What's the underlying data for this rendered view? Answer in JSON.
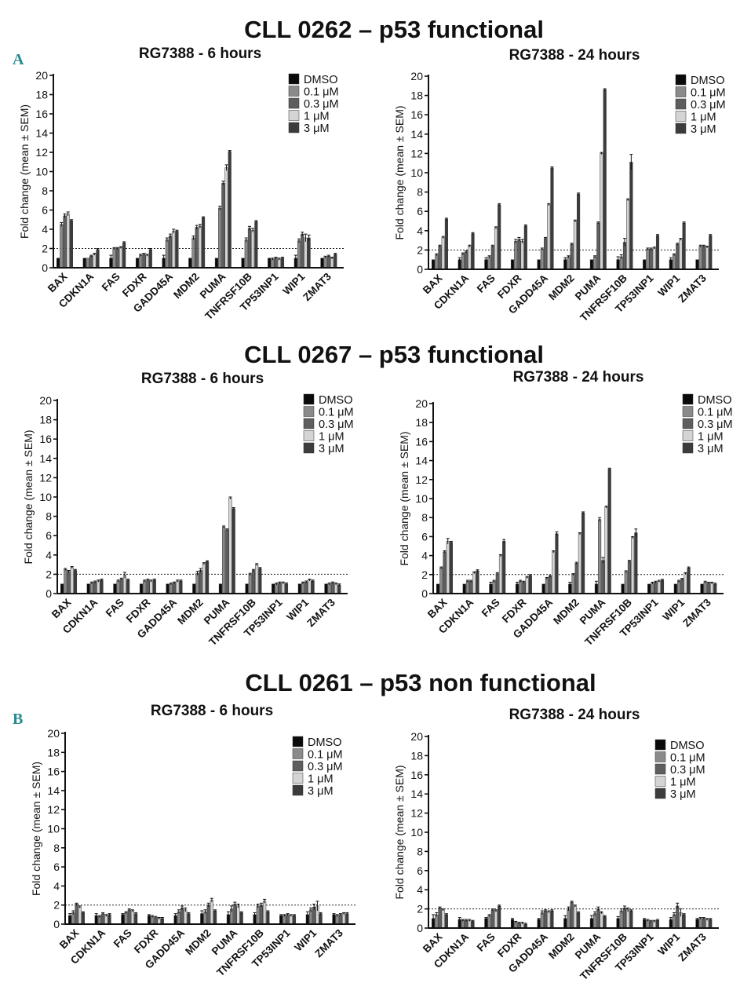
{
  "figure": {
    "panel_letters": [
      "A",
      "B"
    ],
    "section_titles": [
      "CLL 0262 – p53 functional",
      "CLL 0267 – p53 functional",
      "CLL 0261 – p53 non functional"
    ]
  },
  "colors": {
    "DMSO": "#0a0a0a",
    "0.1 μM": "#8a8a8a",
    "0.3 μM": "#5e5e5e",
    "1 μM": "#d4d4d4",
    "3 μM": "#3c3c3c",
    "accent_letter": "#2a8a8e"
  },
  "chart_data": [
    {
      "id": "cll0262-6h",
      "type": "bar",
      "title": "RG7388 - 6 hours",
      "ylabel": "Fold change (mean ± SEM)",
      "xlabel": "",
      "ylim": [
        0,
        20
      ],
      "yticks": [
        0,
        2,
        4,
        6,
        8,
        10,
        12,
        14,
        16,
        18,
        20
      ],
      "reference_line": 2,
      "legend_position": "top-right",
      "categories": [
        "BAX",
        "CDKN1A",
        "FAS",
        "FDXR",
        "GADD45A",
        "MDM2",
        "PUMA",
        "TNFRSF10B",
        "TP53INP1",
        "WIP1",
        "ZMAT3"
      ],
      "series": [
        {
          "name": "DMSO",
          "values": [
            1,
            1,
            1,
            1,
            1,
            1,
            1,
            1,
            1,
            1,
            1
          ],
          "errors": [
            0,
            0,
            0.3,
            0,
            0.3,
            0,
            0,
            0,
            0,
            0.3,
            0
          ]
        },
        {
          "name": "0.1 μM",
          "values": [
            4.5,
            1,
            2,
            1.3,
            2.9,
            3.1,
            6.2,
            2.9,
            0.9,
            2.8,
            1.1
          ],
          "errors": [
            0.2,
            0,
            0.1,
            0.1,
            0.2,
            0.2,
            0.2,
            0.2,
            0.1,
            0.2,
            0.1
          ]
        },
        {
          "name": "0.3 μM",
          "values": [
            5.4,
            1.2,
            2,
            1.4,
            3.3,
            4.2,
            8.8,
            4.1,
            1,
            3.5,
            1.2
          ],
          "errors": [
            0.2,
            0.1,
            0.1,
            0.1,
            0.2,
            0.2,
            0.2,
            0.2,
            0.1,
            0.2,
            0.1
          ]
        },
        {
          "name": "1 μM",
          "values": [
            5.6,
            1.4,
            2.1,
            1.3,
            3.8,
            4.3,
            10.4,
            3.9,
            0.9,
            3.1,
            1
          ],
          "errors": [
            0.2,
            0.1,
            0.1,
            0.1,
            0.2,
            0.2,
            0.3,
            0.2,
            0.1,
            0.4,
            0.1
          ]
        },
        {
          "name": "3 μM",
          "values": [
            4.9,
            1.9,
            2.6,
            1.9,
            3.8,
            5.2,
            12.1,
            4.8,
            1,
            3.1,
            1.4
          ],
          "errors": [
            0.1,
            0.1,
            0.1,
            0.1,
            0.1,
            0.1,
            0.1,
            0.1,
            0.1,
            0.3,
            0.1
          ]
        }
      ]
    },
    {
      "id": "cll0262-24h",
      "type": "bar",
      "title": "RG7388 - 24 hours",
      "ylabel": "Fold change (mean ± SEM)",
      "xlabel": "",
      "ylim": [
        0,
        20
      ],
      "yticks": [
        0,
        2,
        4,
        6,
        8,
        10,
        12,
        14,
        16,
        18,
        20
      ],
      "reference_line": 2,
      "legend_position": "top-right",
      "categories": [
        "BAX",
        "CDKN1A",
        "FAS",
        "FDXR",
        "GADD45A",
        "MDM2",
        "PUMA",
        "TNFRSF10B",
        "TP53INP1",
        "WIP1",
        "ZMAT3"
      ],
      "series": [
        {
          "name": "DMSO",
          "values": [
            1,
            1,
            1,
            1,
            1,
            1,
            1,
            1,
            1,
            1,
            1
          ],
          "errors": [
            0,
            0.2,
            0.2,
            0,
            0,
            0.2,
            0,
            0.3,
            0,
            0.2,
            0
          ]
        },
        {
          "name": "0.1 μM",
          "values": [
            1.5,
            1.6,
            1.3,
            2.9,
            2.1,
            1.3,
            1.3,
            1.3,
            2.1,
            1.5,
            2.4
          ],
          "errors": [
            0.1,
            0.1,
            0.1,
            0.2,
            0.1,
            0.1,
            0.1,
            0.2,
            0.1,
            0.1,
            0.1
          ]
        },
        {
          "name": "0.3 μM",
          "values": [
            2.4,
            1.8,
            2.4,
            3.1,
            3.2,
            2.6,
            4.8,
            2.8,
            2.1,
            2.6,
            2.4
          ],
          "errors": [
            0.1,
            0.1,
            0.1,
            0.2,
            0.1,
            0.1,
            0.1,
            0.4,
            0.1,
            0.1,
            0.1
          ]
        },
        {
          "name": "1 μM",
          "values": [
            3.3,
            2.4,
            4.3,
            2.9,
            6.7,
            5,
            12,
            7.2,
            2.2,
            3.1,
            2.3
          ],
          "errors": [
            0.1,
            0.1,
            0.1,
            0.2,
            0.1,
            0.1,
            0.1,
            0.1,
            0.1,
            0.1,
            0.1
          ]
        },
        {
          "name": "3 μM",
          "values": [
            5.2,
            3.7,
            6.7,
            4.5,
            10.5,
            7.8,
            18.6,
            11.1,
            3.5,
            4.8,
            3.5
          ],
          "errors": [
            0.1,
            0.1,
            0.1,
            0.1,
            0.1,
            0.1,
            0.1,
            0.8,
            0.1,
            0.1,
            0.1
          ]
        }
      ]
    },
    {
      "id": "cll0267-6h",
      "type": "bar",
      "title": "RG7388 - 6 hours",
      "ylabel": "Fold change (mean ± SEM)",
      "xlabel": "",
      "ylim": [
        0,
        20
      ],
      "yticks": [
        0,
        2,
        4,
        6,
        8,
        10,
        12,
        14,
        16,
        18,
        20
      ],
      "reference_line": 2,
      "legend_position": "top-right",
      "categories": [
        "BAX",
        "CDKN1A",
        "FAS",
        "FDXR",
        "GADD45A",
        "MDM2",
        "PUMA",
        "TNFRSF10B",
        "TP53INP1",
        "WIP1",
        "ZMAT3"
      ],
      "series": [
        {
          "name": "DMSO",
          "values": [
            1,
            1,
            1,
            1,
            1,
            1,
            1,
            1,
            1,
            1,
            1
          ],
          "errors": [
            0,
            0,
            0,
            0,
            0,
            0,
            0,
            0,
            0,
            0,
            0
          ]
        },
        {
          "name": "0.1 μM",
          "values": [
            2.5,
            1.1,
            1.3,
            1.3,
            1,
            2.1,
            6.9,
            2,
            1,
            1.1,
            1
          ],
          "errors": [
            0.1,
            0.1,
            0.1,
            0.1,
            0.1,
            0.2,
            0.1,
            0.1,
            0.1,
            0.1,
            0.1
          ]
        },
        {
          "name": "0.3 μM",
          "values": [
            2.3,
            1.2,
            1.5,
            1.4,
            1.1,
            2.4,
            6.6,
            2.4,
            1.1,
            1.2,
            1.1
          ],
          "errors": [
            0.1,
            0.1,
            0.1,
            0.1,
            0.1,
            0.2,
            0.1,
            0.1,
            0.1,
            0.1,
            0.1
          ]
        },
        {
          "name": "1 μM",
          "values": [
            2.7,
            1.3,
            1.9,
            1.3,
            1.3,
            3.1,
            9.9,
            3,
            1.1,
            1.4,
            1
          ],
          "errors": [
            0.1,
            0.1,
            0.3,
            0.1,
            0.1,
            0.1,
            0.1,
            0.1,
            0.1,
            0.1,
            0.1
          ]
        },
        {
          "name": "3 μM",
          "values": [
            2.4,
            1.4,
            1.4,
            1.4,
            1.3,
            3.3,
            8.8,
            2.6,
            1,
            1.3,
            0.9
          ],
          "errors": [
            0.1,
            0.1,
            0.1,
            0.1,
            0.1,
            0.1,
            0.1,
            0.1,
            0.1,
            0.1,
            0.1
          ]
        }
      ]
    },
    {
      "id": "cll0267-24h",
      "type": "bar",
      "title": "RG7388 - 24 hours",
      "ylabel": "Fold change (mean ± SEM)",
      "xlabel": "",
      "ylim": [
        0,
        20
      ],
      "yticks": [
        0,
        2,
        4,
        6,
        8,
        10,
        12,
        14,
        16,
        18,
        20
      ],
      "reference_line": 2,
      "legend_position": "top-right",
      "categories": [
        "BAX",
        "CDKN1A",
        "FAS",
        "FDXR",
        "GADD45A",
        "MDM2",
        "PUMA",
        "TNFRSF10B",
        "TP53INP1",
        "WIP1",
        "ZMAT3"
      ],
      "series": [
        {
          "name": "DMSO",
          "values": [
            1,
            1,
            1,
            1,
            1,
            1,
            1,
            1,
            1,
            1,
            1
          ],
          "errors": [
            0,
            0,
            0.2,
            0.2,
            0,
            0.2,
            0.3,
            0,
            0,
            0,
            0
          ]
        },
        {
          "name": "0.1 μM",
          "values": [
            2.7,
            1.3,
            1.3,
            1.3,
            1.6,
            2,
            7.8,
            2.3,
            1.1,
            1.3,
            1.2
          ],
          "errors": [
            0.1,
            0.1,
            0.1,
            0.1,
            0.1,
            0.1,
            0.2,
            0.1,
            0.1,
            0.1,
            0.1
          ]
        },
        {
          "name": "0.3 μM",
          "values": [
            4.4,
            1.3,
            2.1,
            1.2,
            1.8,
            3.2,
            3.5,
            3.4,
            1.2,
            1.5,
            1.1
          ],
          "errors": [
            0.1,
            0.1,
            0.1,
            0.1,
            0.1,
            0.1,
            0.3,
            0.1,
            0.1,
            0.1,
            0.1
          ]
        },
        {
          "name": "1 μM",
          "values": [
            5.5,
            2.2,
            4,
            1.7,
            4.4,
            6.3,
            9.1,
            5.9,
            1.3,
            2.1,
            1.1
          ],
          "errors": [
            0.3,
            0.1,
            0.1,
            0.1,
            0.1,
            0.1,
            0.1,
            0.1,
            0.1,
            0.1,
            0.1
          ]
        },
        {
          "name": "3 μM",
          "values": [
            5.4,
            2.4,
            5.5,
            1.9,
            6.3,
            8.5,
            13.1,
            6.4,
            1.4,
            2.7,
            1
          ],
          "errors": [
            0.1,
            0.1,
            0.2,
            0.1,
            0.2,
            0.1,
            0.1,
            0.4,
            0.1,
            0.1,
            0.1
          ]
        }
      ]
    },
    {
      "id": "cll0261-6h",
      "type": "bar",
      "title": "RG7388 - 6 hours",
      "ylabel": "Fold change (mean ± SEM)",
      "xlabel": "",
      "ylim": [
        0,
        20
      ],
      "yticks": [
        0,
        2,
        4,
        6,
        8,
        10,
        12,
        14,
        16,
        18,
        20
      ],
      "reference_line": 2,
      "legend_position": "top-right",
      "categories": [
        "BAX",
        "CDKN1A",
        "FAS",
        "FDXR",
        "GADD45A",
        "MDM2",
        "PUMA",
        "TNFRSF10B",
        "TP53INP1",
        "WIP1",
        "ZMAT3"
      ],
      "series": [
        {
          "name": "DMSO",
          "values": [
            0.9,
            0.9,
            1,
            0.9,
            0.9,
            1.1,
            1,
            1,
            0.9,
            1,
            1
          ],
          "errors": [
            0.2,
            0.2,
            0.1,
            0.1,
            0.2,
            0.3,
            0.3,
            0.2,
            0.1,
            0.3,
            0.1
          ]
        },
        {
          "name": "0.1 μM",
          "values": [
            1.2,
            0.8,
            1.2,
            0.8,
            1.3,
            1.3,
            1.6,
            1.9,
            0.9,
            1.5,
            0.9
          ],
          "errors": [
            0.2,
            0.1,
            0.1,
            0.1,
            0.2,
            0.2,
            0.3,
            0.2,
            0.1,
            0.2,
            0.1
          ]
        },
        {
          "name": "0.3 μM",
          "values": [
            2.1,
            1.1,
            1.5,
            0.7,
            1.7,
            2,
            2.1,
            2,
            1,
            1.8,
            1
          ],
          "errors": [
            0.1,
            0.1,
            0.1,
            0.1,
            0.2,
            0.2,
            0.2,
            0.2,
            0.1,
            0.3,
            0.1
          ]
        },
        {
          "name": "1 μM",
          "values": [
            1.8,
            0.9,
            1.4,
            0.6,
            1.5,
            2.5,
            1.9,
            2.4,
            0.9,
            1.9,
            1.1
          ],
          "errors": [
            0.1,
            0.1,
            0.1,
            0.1,
            0.2,
            0.2,
            0.2,
            0.2,
            0.1,
            0.5,
            0.1
          ]
        },
        {
          "name": "3 μM",
          "values": [
            1.2,
            1,
            1.1,
            0.6,
            1.1,
            1.4,
            1.2,
            1.3,
            0.9,
            1.1,
            1.1
          ],
          "errors": [
            0.1,
            0.1,
            0.1,
            0.1,
            0.1,
            0.1,
            0.1,
            0.1,
            0.1,
            0.1,
            0.1
          ]
        }
      ]
    },
    {
      "id": "cll0261-24h",
      "type": "bar",
      "title": "RG7388 - 24 hours",
      "ylabel": "Fold change (mean ± SEM)",
      "xlabel": "",
      "ylim": [
        0,
        20
      ],
      "yticks": [
        0,
        2,
        4,
        6,
        8,
        10,
        12,
        14,
        16,
        18,
        20
      ],
      "reference_line": 2,
      "legend_position": "top-right",
      "categories": [
        "BAX",
        "CDKN1A",
        "FAS",
        "FDXR",
        "GADD45A",
        "MDM2",
        "PUMA",
        "TNFRSF10B",
        "TP53INP1",
        "WIP1",
        "ZMAT3"
      ],
      "series": [
        {
          "name": "DMSO",
          "values": [
            1,
            0.9,
            1,
            0.9,
            0.9,
            1,
            1,
            1,
            0.9,
            0.9,
            0.9
          ],
          "errors": [
            0.4,
            0.2,
            0.1,
            0.1,
            0.1,
            0.3,
            0.3,
            0.2,
            0.1,
            0.2,
            0.1
          ]
        },
        {
          "name": "0.1 μM",
          "values": [
            1.4,
            0.8,
            1.3,
            0.6,
            1.6,
            2,
            1.5,
            1.8,
            0.8,
            1.4,
            1
          ],
          "errors": [
            0.2,
            0.1,
            0.1,
            0.1,
            0.2,
            0.2,
            0.2,
            0.2,
            0.1,
            0.2,
            0.1
          ]
        },
        {
          "name": "0.3 μM",
          "values": [
            2.1,
            0.8,
            1.9,
            0.5,
            1.8,
            2.7,
            2,
            2.1,
            0.7,
            2.3,
            1
          ],
          "errors": [
            0.1,
            0.1,
            0.1,
            0.1,
            0.1,
            0.1,
            0.2,
            0.2,
            0.1,
            0.3,
            0.1
          ]
        },
        {
          "name": "1 μM",
          "values": [
            1.9,
            0.8,
            1.8,
            0.5,
            1.7,
            2.3,
            1.6,
            1.9,
            0.7,
            1.6,
            0.9
          ],
          "errors": [
            0.1,
            0.1,
            0.1,
            0.1,
            0.1,
            0.1,
            0.1,
            0.2,
            0.1,
            0.4,
            0.1
          ]
        },
        {
          "name": "3 μM",
          "values": [
            1.4,
            0.7,
            2.3,
            0.4,
            1.8,
            1.6,
            1.2,
            1.8,
            0.8,
            1.4,
            0.9
          ],
          "errors": [
            0.1,
            0.1,
            0.1,
            0.1,
            0.1,
            0.1,
            0.1,
            0.1,
            0.1,
            0.1,
            0.1
          ]
        }
      ]
    }
  ]
}
